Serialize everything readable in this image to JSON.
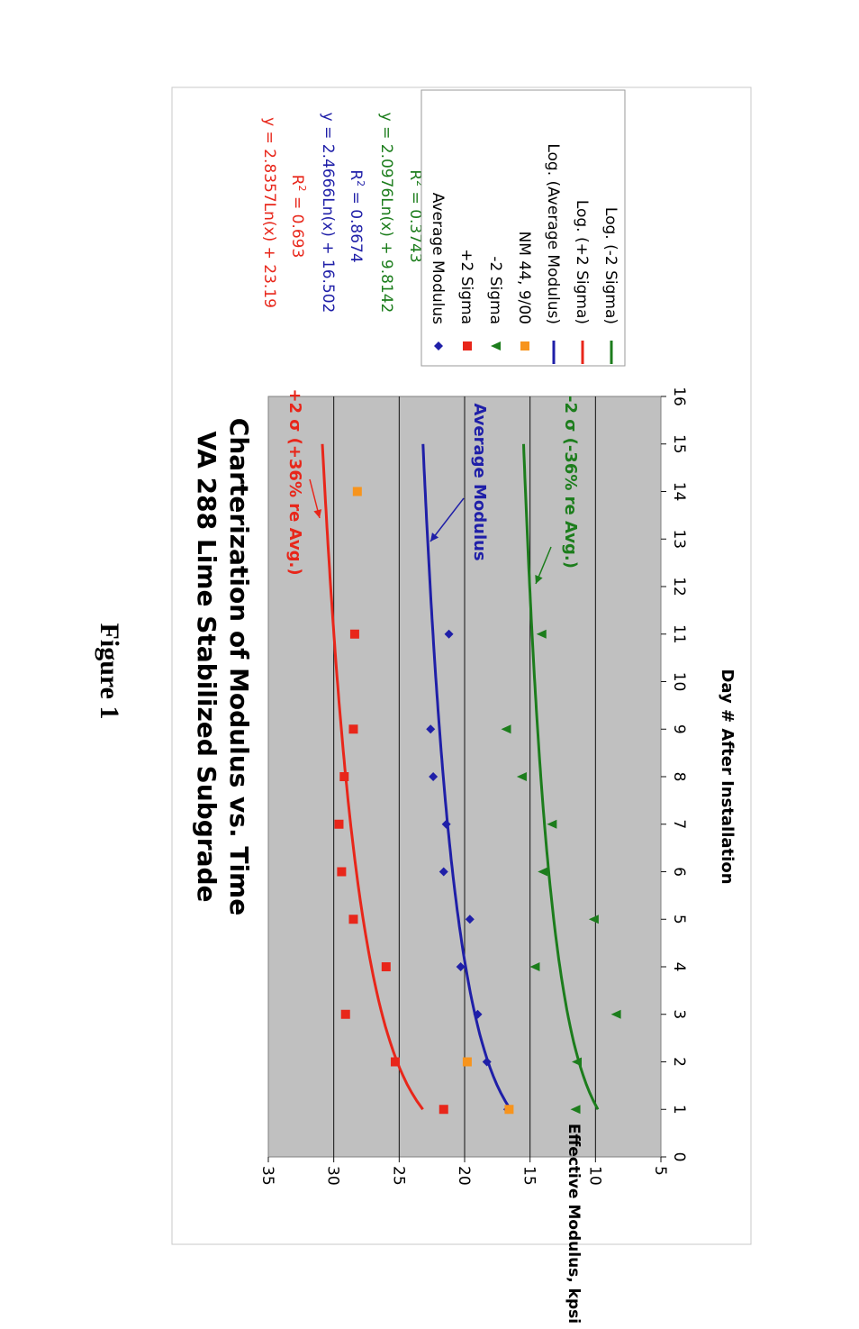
{
  "page": {
    "figure_label": "Figure 1"
  },
  "chart_data": {
    "type": "scatter",
    "title_line1": "VA 288 Lime Stabilized Subgrade",
    "title_line2": "Charterization of Modulus vs. Time",
    "xlabel": "Day # After Installation",
    "ylabel": "Effective Modulus, kpsi",
    "xlim": [
      0,
      16
    ],
    "ylim": [
      5,
      35
    ],
    "x_ticks": [
      "0",
      "1",
      "2",
      "3",
      "4",
      "5",
      "6",
      "7",
      "8",
      "9",
      "10",
      "11",
      "12",
      "13",
      "14",
      "15",
      "16"
    ],
    "y_ticks": [
      "5",
      "10",
      "15",
      "20",
      "25",
      "30",
      "35"
    ],
    "grid": "horizontal",
    "colors": {
      "average": "#1f1fa8",
      "plus2sigma": "#e8261a",
      "minus2sigma": "#1c7d1c",
      "nm44": "#f7941d",
      "plot_bg": "#c0c0c0"
    },
    "series": [
      {
        "name": "Average Modulus",
        "marker": "diamond",
        "color_key": "average",
        "x": [
          1,
          2,
          3,
          4,
          5,
          6,
          7,
          8,
          9,
          11
        ],
        "y": [
          16.7,
          18.3,
          19.0,
          20.3,
          19.6,
          21.6,
          21.4,
          22.4,
          22.6,
          21.2
        ]
      },
      {
        "name": "+2 Sigma",
        "marker": "square",
        "color_key": "plus2sigma",
        "x": [
          1,
          2,
          3,
          4,
          5,
          6,
          7,
          8,
          9,
          11
        ],
        "y": [
          21.6,
          25.3,
          29.1,
          26.0,
          28.5,
          29.4,
          29.6,
          29.2,
          28.5,
          28.4
        ]
      },
      {
        "name": "-2 Sigma",
        "marker": "triangle",
        "color_key": "minus2sigma",
        "x": [
          1,
          2,
          3,
          4,
          5,
          6,
          7,
          8,
          9,
          11
        ],
        "y": [
          11.5,
          11.4,
          8.4,
          14.6,
          10.1,
          14.0,
          13.3,
          15.6,
          16.8,
          14.1
        ]
      },
      {
        "name": "NM 44, 9/00",
        "marker": "square",
        "color_key": "nm44",
        "x": [
          1,
          2,
          14
        ],
        "y": [
          16.6,
          19.8,
          28.2
        ]
      }
    ],
    "trendlines": [
      {
        "name": "Log. (Average Modulus)",
        "color_key": "average",
        "a": 2.4666,
        "b": 16.502,
        "x_from": 1,
        "x_to": 15
      },
      {
        "name": "Log. (+2 Sigma)",
        "color_key": "plus2sigma",
        "a": 2.8357,
        "b": 23.19,
        "x_from": 1,
        "x_to": 15
      },
      {
        "name": "Log. (-2 Sigma)",
        "color_key": "minus2sigma",
        "a": 2.0976,
        "b": 9.8142,
        "x_from": 1,
        "x_to": 15
      }
    ],
    "equations": [
      {
        "eq": "y = 2.8357Ln(x) + 23.19",
        "r2": "0.693",
        "color_key": "plus2sigma"
      },
      {
        "eq": "y = 2.4666Ln(x) + 16.502",
        "r2": "0.8674",
        "color_key": "average"
      },
      {
        "eq": "y = 2.0976Ln(x) + 9.8142",
        "r2": "0.3743",
        "color_key": "minus2sigma"
      }
    ],
    "annotations": [
      {
        "text": "+2 σ (+36% re Avg.)",
        "color_key": "plus2sigma",
        "x": 13.35,
        "y": 30.5
      },
      {
        "text": "Average Modulus",
        "color_key": "average",
        "x": 13.0,
        "y": 22.6
      },
      {
        "text": "-2 σ (-36% re Avg.)",
        "color_key": "minus2sigma",
        "x": 12.0,
        "y": 14.9
      }
    ],
    "legend": {
      "placement": "right",
      "entries": [
        {
          "label": "Average Modulus",
          "kind": "diamond",
          "color_key": "average"
        },
        {
          "label": "+2 Sigma",
          "kind": "square",
          "color_key": "plus2sigma"
        },
        {
          "label": "-2 Sigma",
          "kind": "triangle",
          "color_key": "minus2sigma"
        },
        {
          "label": "NM 44, 9/00",
          "kind": "square",
          "color_key": "nm44"
        },
        {
          "label": "Log. (Average Modulus)",
          "kind": "line",
          "color_key": "average"
        },
        {
          "label": "Log. (+2 Sigma)",
          "kind": "line",
          "color_key": "plus2sigma"
        },
        {
          "label": "Log. (-2 Sigma)",
          "kind": "line",
          "color_key": "minus2sigma"
        }
      ]
    }
  }
}
